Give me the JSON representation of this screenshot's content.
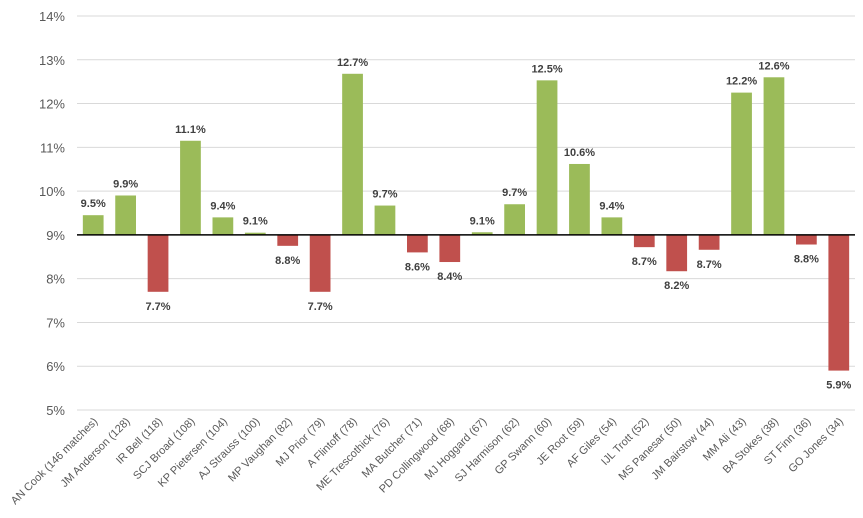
{
  "chart_data": {
    "type": "bar",
    "title": "",
    "xlabel": "",
    "ylabel": "",
    "ylim": [
      5,
      14
    ],
    "baseline": 9,
    "y_ticks": [
      "5%",
      "6%",
      "7%",
      "8%",
      "9%",
      "10%",
      "11%",
      "12%",
      "13%",
      "14%"
    ],
    "categories": [
      "AN Cook (146 matches)",
      "JM Anderson (128)",
      "IR Bell (118)",
      "SCJ Broad (108)",
      "KP Pietersen (104)",
      "AJ Strauss (100)",
      "MP Vaughan (82)",
      "MJ Prior (79)",
      "A Flintoff (78)",
      "ME Trescothick (76)",
      "MA Butcher (71)",
      "PD Collingwood (68)",
      "MJ Hoggard (67)",
      "SJ Harmison (62)",
      "GP Swann (60)",
      "JE Root (59)",
      "AF Giles (54)",
      "IJL Trott (52)",
      "MS Panesar (50)",
      "JM Bairstow (44)",
      "MM Ali (43)",
      "BA Stokes (38)",
      "ST Finn (36)",
      "GO Jones (34)"
    ],
    "values": [
      9.45,
      9.9,
      7.7,
      11.15,
      9.4,
      9.05,
      8.75,
      7.7,
      12.68,
      9.67,
      8.6,
      8.38,
      9.06,
      9.7,
      12.53,
      10.62,
      9.4,
      8.72,
      8.17,
      8.66,
      12.25,
      12.6,
      8.78,
      5.9
    ],
    "data_labels": [
      "9.5%",
      "9.9%",
      "7.7%",
      "11.1%",
      "9.4%",
      "9.1%",
      "8.8%",
      "7.7%",
      "12.7%",
      "9.7%",
      "8.6%",
      "8.4%",
      "9.1%",
      "9.7%",
      "12.5%",
      "10.6%",
      "9.4%",
      "8.7%",
      "8.2%",
      "8.7%",
      "12.2%",
      "12.6%",
      "8.8%",
      "5.9%"
    ],
    "colors": {
      "above": "#9BBB59",
      "below": "#C0504D",
      "grid": "#D9D9D9",
      "axis": "#000000"
    },
    "grid": true
  }
}
